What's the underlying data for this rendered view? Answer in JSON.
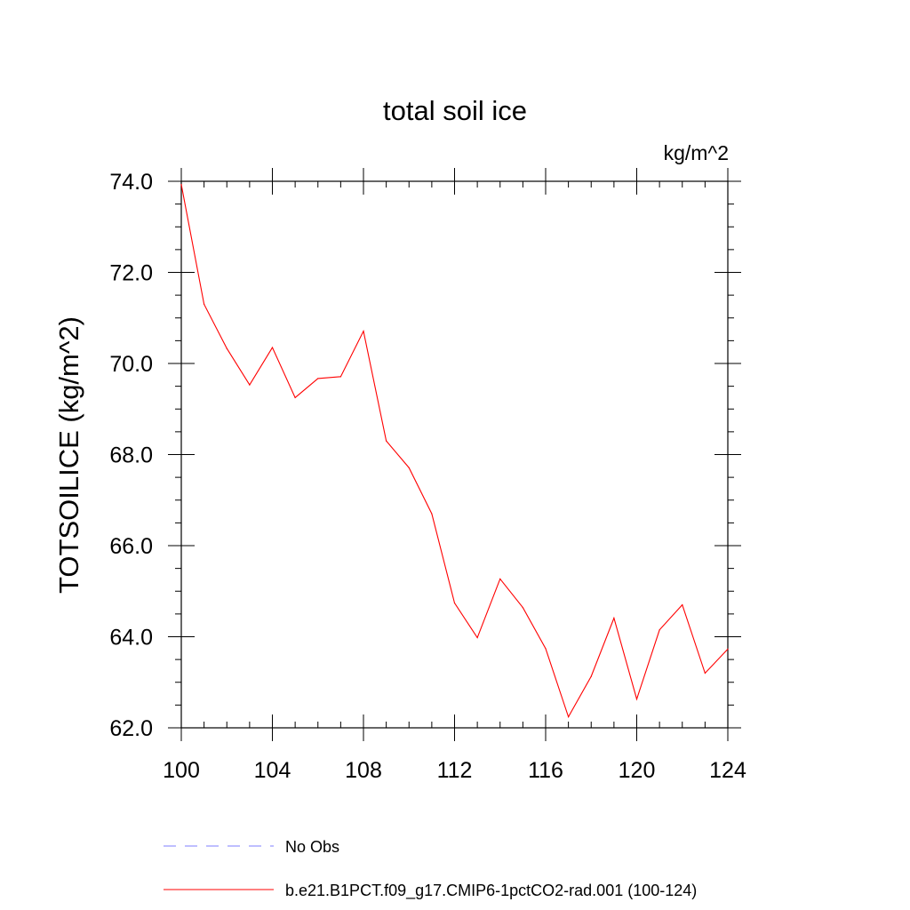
{
  "chart_data": {
    "type": "line",
    "title": "total soil ice",
    "units_label": "kg/m^2",
    "ylabel": "TOTSOILICE  (kg/m^2)",
    "xlabel": "",
    "xlim": [
      100,
      124
    ],
    "ylim": [
      62.0,
      74.0
    ],
    "x_ticks": [
      100,
      104,
      108,
      112,
      116,
      120,
      124
    ],
    "x_tick_labels": [
      "100",
      "104",
      "108",
      "112",
      "116",
      "120",
      "124"
    ],
    "y_ticks": [
      62.0,
      64.0,
      66.0,
      68.0,
      70.0,
      72.0,
      74.0
    ],
    "y_tick_labels": [
      "62.0",
      "64.0",
      "66.0",
      "68.0",
      "70.0",
      "72.0",
      "74.0"
    ],
    "grid": false,
    "legend_position": "bottom",
    "series": [
      {
        "name": "b.e21.B1PCT.f09_g17.CMIP6-1pctCO2-rad.001 (100-124)",
        "color": "#ff0000",
        "style": "solid",
        "x": [
          100,
          101,
          102,
          103,
          104,
          105,
          106,
          107,
          108,
          109,
          110,
          111,
          112,
          113,
          114,
          115,
          116,
          117,
          118,
          119,
          120,
          121,
          122,
          123,
          124
        ],
        "y": [
          73.93,
          71.3,
          70.33,
          69.53,
          70.35,
          69.25,
          69.67,
          69.71,
          70.71,
          68.3,
          67.71,
          66.7,
          64.74,
          63.98,
          65.27,
          64.64,
          63.74,
          62.24,
          63.13,
          64.41,
          62.63,
          64.15,
          64.7,
          63.2,
          63.73
        ]
      }
    ],
    "legend": [
      {
        "label": "No Obs",
        "color": "#7f7fff",
        "style": "dashed"
      },
      {
        "label": "b.e21.B1PCT.f09_g17.CMIP6-1pctCO2-rad.001 (100-124)",
        "color": "#ff0000",
        "style": "solid"
      }
    ]
  }
}
